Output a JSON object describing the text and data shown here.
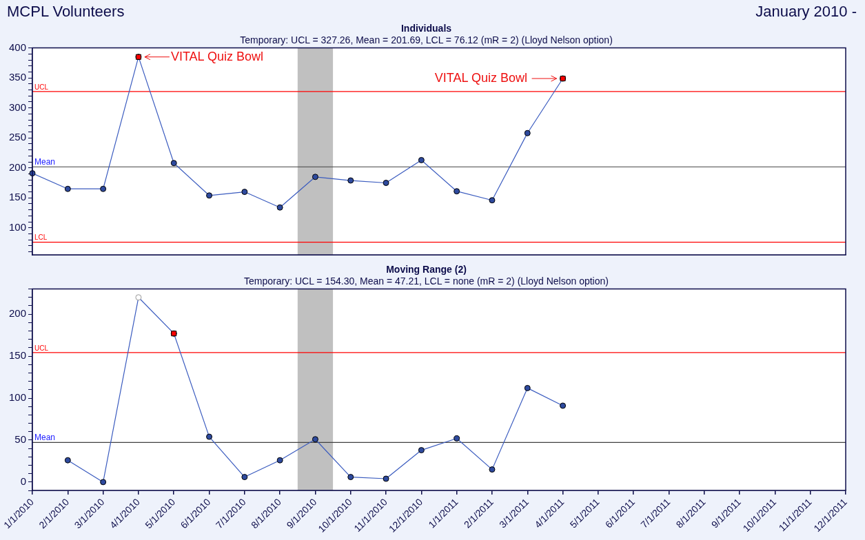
{
  "chart_data": [
    {
      "type": "line",
      "title": "Individuals",
      "subtitle": "Temporary: UCL = 327.26, Mean = 201.69, LCL = 76.12 (mR = 2) (Lloyd Nelson option)",
      "categories": [
        "1/1/2010",
        "2/1/2010",
        "3/1/2010",
        "4/1/2010",
        "5/1/2010",
        "6/1/2010",
        "7/1/2010",
        "8/1/2010",
        "9/1/2010",
        "10/1/2010",
        "11/1/2010",
        "12/1/2010",
        "1/1/2011",
        "2/1/2011",
        "3/1/2011",
        "4/1/2011",
        "5/1/2011",
        "6/1/2011",
        "7/1/2011",
        "8/1/2011",
        "9/1/2011",
        "10/1/2011",
        "11/1/2011",
        "12/1/2011"
      ],
      "series": [
        {
          "color": "#3a5bbf",
          "colors": [
            "#2e4a9e",
            "#2e4a9e",
            "#2e4a9e",
            "#2e4a9e",
            "#2e4a9e",
            "#2e4a9e",
            "#2e4a9e",
            "#2e4a9e",
            "#2e4a9e",
            "#2e4a9e",
            "#2e4a9e",
            "#2e4a9e",
            "#2e4a9e",
            "#2e4a9e",
            "#2e4a9e",
            "#2e4a9e",
            null,
            null,
            null,
            null,
            null,
            null,
            null,
            null
          ],
          "values": [
            191,
            165,
            165,
            385,
            208,
            154,
            160,
            134,
            185,
            179,
            175,
            213,
            161,
            146,
            258,
            349,
            null,
            null,
            null,
            null,
            null,
            null,
            null,
            null
          ]
        },
        {
          "type": "scatter",
          "marker": "square",
          "color": "#ff0000",
          "x": [
            "4/1/2010",
            "4/1/2011"
          ],
          "values": [
            385,
            349
          ]
        }
      ],
      "marker": "circle",
      "ylim": [
        55,
        400
      ],
      "yticks": [
        {
          "value": 60,
          "label": null
        },
        {
          "value": 70,
          "label": null
        },
        {
          "value": 80,
          "label": null
        },
        {
          "value": 90,
          "label": null
        },
        100,
        {
          "value": 110,
          "label": null
        },
        {
          "value": 120,
          "label": null
        },
        {
          "value": 130,
          "label": null
        },
        {
          "value": 140,
          "label": null
        },
        150,
        {
          "value": 160,
          "label": null
        },
        {
          "value": 170,
          "label": null
        },
        {
          "value": 180,
          "label": null
        },
        {
          "value": 190,
          "label": null
        },
        200,
        {
          "value": 210,
          "label": null
        },
        {
          "value": 220,
          "label": null
        },
        {
          "value": 230,
          "label": null
        },
        {
          "value": 240,
          "label": null
        },
        250,
        {
          "value": 260,
          "label": null
        },
        {
          "value": 270,
          "label": null
        },
        {
          "value": 280,
          "label": null
        },
        {
          "value": 290,
          "label": null
        },
        300,
        {
          "value": 310,
          "label": null
        },
        {
          "value": 320,
          "label": null
        },
        {
          "value": 330,
          "label": null
        },
        {
          "value": 340,
          "label": null
        },
        350,
        {
          "value": 360,
          "label": null
        },
        {
          "value": 370,
          "label": null
        },
        {
          "value": 380,
          "label": null
        },
        {
          "value": 390,
          "label": null
        },
        400
      ],
      "tick_labels": "y",
      "ref_lines": [
        {
          "axis": "y",
          "value": 327.26,
          "label": "UCL",
          "color": "#ff0000"
        },
        {
          "axis": "y",
          "value": 201.69,
          "label": "Mean",
          "color": "#404040"
        },
        {
          "axis": "y",
          "value": 76.12,
          "label": "LCL",
          "color": "#ff0000"
        }
      ],
      "bands": [
        {
          "axis": "x",
          "from": "9/1/2010",
          "to": "9/1/2010",
          "color": "#c0c0c0"
        }
      ],
      "annotations": [
        "MCPL Volunteers",
        "January 2010 -",
        {
          "text": "VITAL Quiz Bowl",
          "x": "4/1/2010",
          "y": 385
        },
        {
          "text": "VITAL Quiz Bowl",
          "x": "4/1/2011",
          "y": 349
        }
      ]
    },
    {
      "type": "line",
      "title": "Moving Range (2)",
      "subtitle": "Temporary: UCL = 154.30, Mean = 47.21, LCL = none (mR = 2) (Lloyd Nelson option)",
      "categories": [
        "1/1/2010",
        "2/1/2010",
        "3/1/2010",
        "4/1/2010",
        "5/1/2010",
        "6/1/2010",
        "7/1/2010",
        "8/1/2010",
        "9/1/2010",
        "10/1/2010",
        "11/1/2010",
        "12/1/2010",
        "1/1/2011",
        "2/1/2011",
        "3/1/2011",
        "4/1/2011",
        "5/1/2011",
        "6/1/2011",
        "7/1/2011",
        "8/1/2011",
        "9/1/2011",
        "10/1/2011",
        "11/1/2011",
        "12/1/2011"
      ],
      "series": [
        {
          "color": "#3a5bbf",
          "colors": [
            null,
            "#2e4a9e",
            "#2e4a9e",
            "#ffffff",
            "#2e4a9e",
            "#2e4a9e",
            "#2e4a9e",
            "#2e4a9e",
            "#2e4a9e",
            "#2e4a9e",
            "#2e4a9e",
            "#2e4a9e",
            "#2e4a9e",
            "#2e4a9e",
            "#2e4a9e",
            "#2e4a9e",
            null,
            null,
            null,
            null,
            null,
            null,
            null,
            null
          ],
          "values": [
            null,
            26,
            0,
            220,
            177,
            54,
            6,
            26,
            51,
            6,
            4,
            38,
            52,
            15,
            112,
            91,
            null,
            null,
            null,
            null,
            null,
            null,
            null,
            null
          ]
        },
        {
          "type": "scatter",
          "marker": "square",
          "color": "#ff0000",
          "x": [
            "5/1/2010"
          ],
          "values": [
            177
          ]
        }
      ],
      "marker": "circle",
      "ylim": [
        -10,
        230
      ],
      "yticks": [
        {
          "value": -10,
          "label": null
        },
        0,
        {
          "value": 10,
          "label": null
        },
        {
          "value": 20,
          "label": null
        },
        {
          "value": 30,
          "label": null
        },
        {
          "value": 40,
          "label": null
        },
        50,
        {
          "value": 60,
          "label": null
        },
        {
          "value": 70,
          "label": null
        },
        {
          "value": 80,
          "label": null
        },
        {
          "value": 90,
          "label": null
        },
        100,
        {
          "value": 110,
          "label": null
        },
        {
          "value": 120,
          "label": null
        },
        {
          "value": 130,
          "label": null
        },
        {
          "value": 140,
          "label": null
        },
        150,
        {
          "value": 160,
          "label": null
        },
        {
          "value": 170,
          "label": null
        },
        {
          "value": 180,
          "label": null
        },
        {
          "value": 190,
          "label": null
        },
        200,
        {
          "value": 210,
          "label": null
        },
        {
          "value": 220,
          "label": null
        },
        {
          "value": 230,
          "label": null
        }
      ],
      "ref_lines": [
        {
          "axis": "y",
          "value": 154.3,
          "label": "UCL",
          "color": "#ff0000"
        },
        {
          "axis": "y",
          "value": 47.21,
          "label": "Mean",
          "color": "#404040"
        }
      ],
      "bands": [
        {
          "axis": "x",
          "from": "9/1/2010",
          "to": "9/1/2010",
          "color": "#c0c0c0"
        }
      ]
    }
  ]
}
